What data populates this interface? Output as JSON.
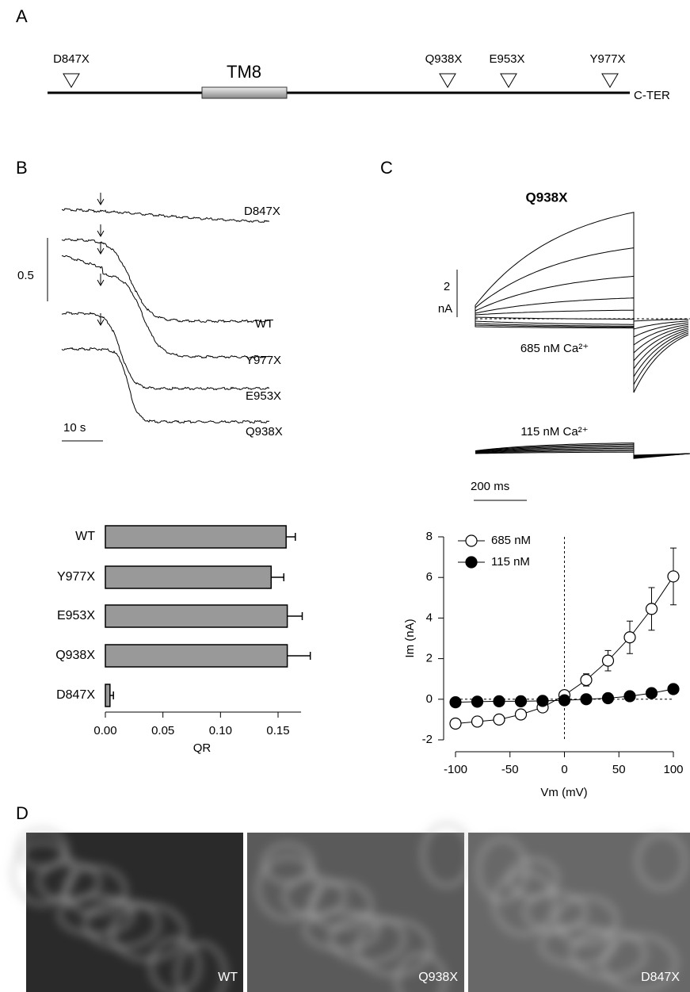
{
  "panel_labels": [
    "A",
    "B",
    "C",
    "D"
  ],
  "schematic": {
    "mutations": [
      "D847X",
      "Q938X",
      "E953X",
      "Y977X"
    ],
    "domain": "TM8",
    "terminus": "C-TER"
  },
  "traces": {
    "labels": [
      "D847X",
      "WT",
      "Y977X",
      "E953X",
      "Q938X"
    ],
    "scale_label": "0.5",
    "time_label": "10 s"
  },
  "currents": {
    "title": "Q938X",
    "scale_top": "2",
    "scale_unit": "nA",
    "condition_high": "685 nM Ca²⁺",
    "condition_low": "115 nM Ca²⁺",
    "time_label": "200 ms"
  },
  "chart_data": [
    {
      "type": "hbar",
      "categories": [
        "WT",
        "Y977X",
        "E953X",
        "Q938X",
        "D847X"
      ],
      "values": [
        0.157,
        0.144,
        0.158,
        0.158,
        0.004
      ],
      "errors": [
        0.008,
        0.011,
        0.013,
        0.02,
        0.003
      ],
      "color": "#999999",
      "xlabel": "QR",
      "xlim": [
        0,
        0.17
      ],
      "xticks": [
        {
          "value": 0,
          "label": "0.00"
        },
        {
          "value": 0.05,
          "label": "0.05"
        },
        {
          "value": 0.1,
          "label": "0.10"
        },
        {
          "value": 0.15,
          "label": "0.15"
        }
      ]
    },
    {
      "type": "line",
      "x": [
        -100,
        -80,
        -60,
        -40,
        -20,
        0,
        20,
        40,
        60,
        80,
        100
      ],
      "series": [
        {
          "name": "685 nM",
          "color": "#000000",
          "marker_fill": "#ffffff",
          "values": [
            -1.2,
            -1.1,
            -1.0,
            -0.75,
            -0.4,
            0.2,
            0.95,
            1.9,
            3.05,
            4.45,
            6.05
          ],
          "errors": [
            0.1,
            0.1,
            0.1,
            0.15,
            0.15,
            0.2,
            0.3,
            0.5,
            0.8,
            1.05,
            1.4
          ]
        },
        {
          "name": "115 nM",
          "color": "#000000",
          "marker_fill": "#000000",
          "values": [
            -0.15,
            -0.12,
            -0.1,
            -0.1,
            -0.08,
            -0.05,
            0.0,
            0.05,
            0.15,
            0.3,
            0.5
          ]
        }
      ],
      "xlabel": "Vm (mV)",
      "ylabel": "Im  (nA)",
      "xlim": [
        -100,
        100
      ],
      "ylim": [
        -2,
        8
      ],
      "xticks": [
        -100,
        -50,
        0,
        50,
        100
      ],
      "yticks": [
        -2,
        0,
        2,
        4,
        6,
        8
      ]
    }
  ],
  "images": {
    "labels": [
      "WT",
      "Q938X",
      "D847X"
    ]
  }
}
